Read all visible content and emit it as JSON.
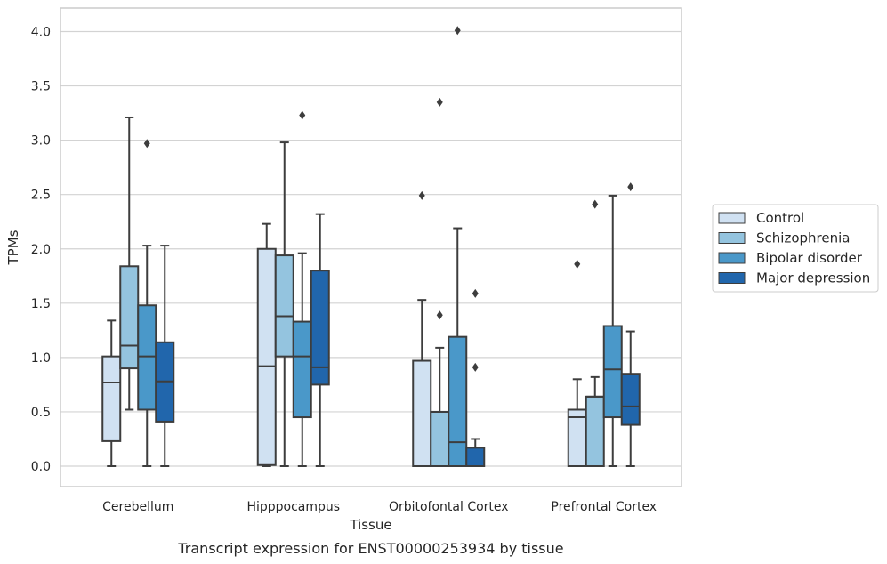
{
  "caption": "Transcript expression for ENST00000253934 by tissue",
  "chart_data": {
    "type": "boxplot",
    "xlabel": "Tissue",
    "ylabel": "TPMs",
    "ylim": [
      -0.2,
      4.22
    ],
    "yticks": [
      "0.0",
      "0.5",
      "1.0",
      "1.5",
      "2.0",
      "2.5",
      "3.0",
      "3.5",
      "4.0"
    ],
    "grid": true,
    "legend_position": "right",
    "categories": [
      "Cerebellum",
      "Hipppocampus",
      "Orbitofontal Cortex",
      "Prefrontal Cortex"
    ],
    "series": [
      {
        "name": "Control",
        "color": "#d0e1f2",
        "boxes": [
          {
            "whislo": 0.0,
            "q1": 0.23,
            "med": 0.77,
            "q3": 1.01,
            "whishi": 1.34,
            "fliers": []
          },
          {
            "whislo": 0.0,
            "q1": 0.01,
            "med": 0.92,
            "q3": 2.0,
            "whishi": 2.23,
            "fliers": []
          },
          {
            "whislo": 0.0,
            "q1": 0.0,
            "med": 0.0,
            "q3": 0.97,
            "whishi": 1.53,
            "fliers": [
              2.49
            ]
          },
          {
            "whislo": 0.0,
            "q1": 0.0,
            "med": 0.45,
            "q3": 0.52,
            "whishi": 0.8,
            "fliers": [
              1.86
            ]
          }
        ]
      },
      {
        "name": "Schizophrenia",
        "color": "#94c4df",
        "boxes": [
          {
            "whislo": 0.52,
            "q1": 0.9,
            "med": 1.11,
            "q3": 1.84,
            "whishi": 3.21,
            "fliers": []
          },
          {
            "whislo": 0.0,
            "q1": 1.01,
            "med": 1.38,
            "q3": 1.94,
            "whishi": 2.98,
            "fliers": []
          },
          {
            "whislo": 0.0,
            "q1": 0.0,
            "med": 0.5,
            "q3": 0.5,
            "whishi": 1.09,
            "fliers": [
              1.39,
              3.35
            ]
          },
          {
            "whislo": 0.0,
            "q1": 0.0,
            "med": 0.64,
            "q3": 0.64,
            "whishi": 0.82,
            "fliers": [
              2.41
            ]
          }
        ]
      },
      {
        "name": "Bipolar disorder",
        "color": "#4a98c9",
        "boxes": [
          {
            "whislo": 0.0,
            "q1": 0.52,
            "med": 1.01,
            "q3": 1.48,
            "whishi": 2.03,
            "fliers": [
              2.97
            ]
          },
          {
            "whislo": 0.0,
            "q1": 0.45,
            "med": 1.01,
            "q3": 1.33,
            "whishi": 1.96,
            "fliers": [
              3.23
            ]
          },
          {
            "whislo": 0.0,
            "q1": 0.0,
            "med": 0.22,
            "q3": 1.19,
            "whishi": 2.19,
            "fliers": [
              4.01
            ]
          },
          {
            "whislo": 0.0,
            "q1": 0.45,
            "med": 0.89,
            "q3": 1.29,
            "whishi": 2.49,
            "fliers": []
          }
        ]
      },
      {
        "name": "Major depression",
        "color": "#2166ac",
        "boxes": [
          {
            "whislo": 0.0,
            "q1": 0.41,
            "med": 0.78,
            "q3": 1.14,
            "whishi": 2.03,
            "fliers": []
          },
          {
            "whislo": 0.0,
            "q1": 0.75,
            "med": 0.91,
            "q3": 1.8,
            "whishi": 2.32,
            "fliers": []
          },
          {
            "whislo": 0.0,
            "q1": 0.0,
            "med": 0.17,
            "q3": 0.17,
            "whishi": 0.25,
            "fliers": [
              0.91,
              1.59
            ]
          },
          {
            "whislo": 0.0,
            "q1": 0.38,
            "med": 0.55,
            "q3": 0.85,
            "whishi": 1.24,
            "fliers": [
              2.57
            ]
          }
        ]
      }
    ]
  }
}
